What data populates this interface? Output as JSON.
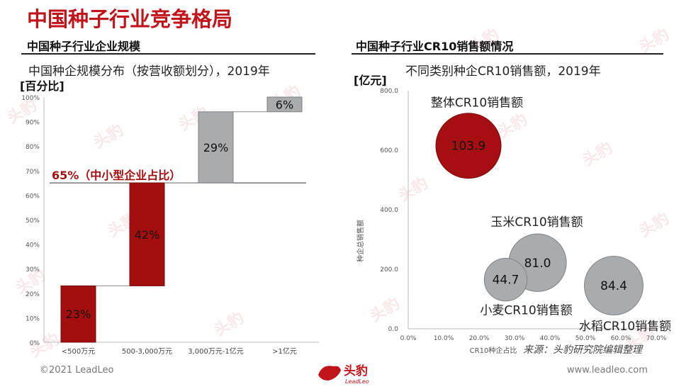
{
  "page_title": "中国种子行业竞争格局",
  "left": {
    "section_title": "中国种子行业企业规模",
    "subtitle": "中国种企规模分布（按营收额划分），2019年",
    "unit": "[百分比]",
    "annotation": "65%（中小型企业占比）"
  },
  "right": {
    "section_title": "中国种子行业CR10销售额情况",
    "subtitle": "不同类别种企CR10销售额，2019年",
    "unit": "[亿元]",
    "source_note": "来源：头豹研究院编辑整理"
  },
  "footer": {
    "copyright": "©2021 LeadLeo",
    "website": "www.leadleo.com",
    "logo_text": "头豹",
    "logo_sub": "LeadLeo",
    "watermark": "头豹"
  },
  "colors": {
    "accent": "#c0161b",
    "bar_red": "#a30f0f",
    "bar_gray": "#a9acaf",
    "bubble_red": "#a50f12",
    "bubble_gray": "#a9acaf"
  },
  "chart_data": [
    {
      "type": "bar",
      "subtype": "waterfall",
      "categories": [
        "<500万元",
        "500-3,000万元",
        "3,000万元-1亿元",
        ">1亿元"
      ],
      "values": [
        23,
        42,
        29,
        6
      ],
      "data_labels": [
        "23%",
        "42%",
        "29%",
        "6%"
      ],
      "ylim": [
        0,
        100
      ],
      "yticks": [
        "0%",
        "10%",
        "20%",
        "30%",
        "40%",
        "50%",
        "60%",
        "70%",
        "80%",
        "90%",
        "100%"
      ],
      "reference_line": 65
    },
    {
      "type": "scatter",
      "subtype": "bubble",
      "xlabel": "CR10种企占比",
      "ylabel": "种企总销售额",
      "xlim": [
        0,
        70
      ],
      "ylim": [
        0,
        800
      ],
      "xticks": [
        "0.0%",
        "10.0%",
        "20.0%",
        "30.0%",
        "40.0%",
        "50.0%",
        "60.0%",
        "70.0%"
      ],
      "yticks": [
        "0.0",
        "200.0",
        "400.0",
        "600.0",
        "800.0"
      ],
      "points": [
        {
          "name": "整体CR10销售额",
          "x": 17.0,
          "y": 615,
          "value": 103.9,
          "label": "103.9",
          "color": "red"
        },
        {
          "name": "玉米CR10销售额",
          "x": 36.5,
          "y": 222,
          "value": 81.0,
          "label": "81.0",
          "color": "gray"
        },
        {
          "name": "小麦CR10销售额",
          "x": 27.5,
          "y": 165,
          "value": 44.7,
          "label": "44.7",
          "color": "gray"
        },
        {
          "name": "水稻CR10销售额",
          "x": 58.0,
          "y": 145,
          "value": 84.4,
          "label": "84.4",
          "color": "gray"
        }
      ]
    }
  ]
}
